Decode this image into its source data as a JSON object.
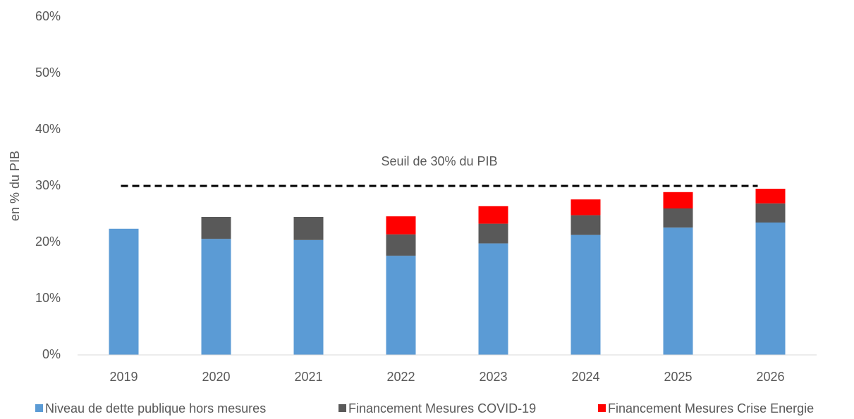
{
  "chart_data": {
    "type": "stacked_bar",
    "y_axis_label": "en % du PIB",
    "categories": [
      "2019",
      "2020",
      "2021",
      "2022",
      "2023",
      "2024",
      "2025",
      "2026"
    ],
    "series": [
      {
        "name": "Niveau de dette publique hors mesures",
        "color": "#5b9bd5",
        "values": [
          22.4,
          20.6,
          20.4,
          17.6,
          19.8,
          21.3,
          22.6,
          23.5
        ]
      },
      {
        "name": "Financement Mesures COVID-19",
        "color": "#595959",
        "values": [
          0,
          3.9,
          4.1,
          3.8,
          3.5,
          3.5,
          3.4,
          3.4
        ]
      },
      {
        "name": "Financement Mesures Crise Energie",
        "color": "#ff0000",
        "values": [
          0,
          0,
          0,
          3.2,
          3.1,
          2.8,
          2.9,
          2.6
        ]
      }
    ],
    "threshold": {
      "value": 30,
      "label": "Seuil de 30% du PIB"
    },
    "ylim": [
      0,
      60
    ],
    "yticks": [
      {
        "value": 0,
        "label": "0%"
      },
      {
        "value": 10,
        "label": "10%"
      },
      {
        "value": 20,
        "label": "20%"
      },
      {
        "value": 30,
        "label": "30%"
      },
      {
        "value": 40,
        "label": "40%"
      },
      {
        "value": 50,
        "label": "50%"
      },
      {
        "value": 60,
        "label": "60%"
      }
    ],
    "grid": false,
    "legend": "bottom"
  }
}
